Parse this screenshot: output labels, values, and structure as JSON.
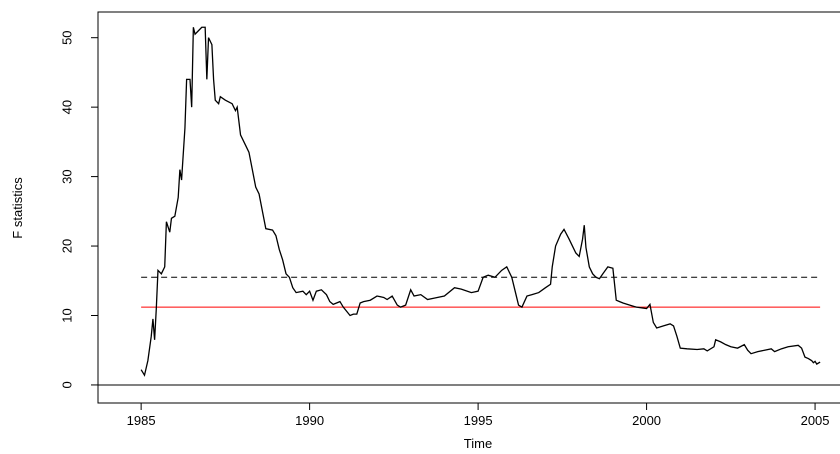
{
  "chart_data": {
    "type": "line",
    "x_label": "Time",
    "y_label": "F statistics",
    "xlim": [
      1983.72,
      2005.74
    ],
    "ylim": [
      -2.6,
      53.7
    ],
    "xticks": [
      1985,
      1990,
      1995,
      2000,
      2005
    ],
    "yticks": [
      0,
      10,
      20,
      30,
      40,
      50
    ],
    "series": [
      {
        "color": "#000000",
        "x": [
          1985.0,
          1985.1,
          1985.2,
          1985.3,
          1985.35,
          1985.4,
          1985.45,
          1985.5,
          1985.6,
          1985.7,
          1985.75,
          1985.85,
          1985.9,
          1986.0,
          1986.1,
          1986.15,
          1986.2,
          1986.3,
          1986.35,
          1986.45,
          1986.5,
          1986.55,
          1986.6,
          1986.7,
          1986.8,
          1986.9,
          1986.95,
          1987.0,
          1987.1,
          1987.15,
          1987.2,
          1987.3,
          1987.35,
          1987.5,
          1987.7,
          1987.8,
          1987.85,
          1987.95,
          1988.1,
          1988.2,
          1988.3,
          1988.4,
          1988.5,
          1988.6,
          1988.7,
          1988.9,
          1989.0,
          1989.1,
          1989.2,
          1989.3,
          1989.4,
          1989.5,
          1989.6,
          1989.8,
          1989.9,
          1990.0,
          1990.1,
          1990.2,
          1990.35,
          1990.5,
          1990.6,
          1990.7,
          1990.9,
          1991.0,
          1991.2,
          1991.3,
          1991.4,
          1991.5,
          1991.6,
          1991.8,
          1992.0,
          1992.2,
          1992.3,
          1992.45,
          1992.6,
          1992.7,
          1992.85,
          1993.0,
          1993.1,
          1993.3,
          1993.5,
          1993.7,
          1994.0,
          1994.3,
          1994.5,
          1994.8,
          1995.0,
          1995.15,
          1995.3,
          1995.5,
          1995.7,
          1995.85,
          1996.0,
          1996.1,
          1996.2,
          1996.3,
          1996.45,
          1996.6,
          1996.8,
          1997.0,
          1997.15,
          1997.2,
          1997.3,
          1997.45,
          1997.55,
          1997.7,
          1997.8,
          1997.9,
          1998.0,
          1998.1,
          1998.15,
          1998.2,
          1998.3,
          1998.4,
          1998.5,
          1998.6,
          1998.7,
          1998.85,
          1999.0,
          1999.05,
          1999.1,
          1999.2,
          1999.3,
          1999.5,
          1999.7,
          2000.0,
          2000.1,
          2000.2,
          2000.3,
          2000.5,
          2000.7,
          2000.8,
          2000.9,
          2001.0,
          2001.2,
          2001.5,
          2001.7,
          2001.8,
          2002.0,
          2002.05,
          2002.2,
          2002.35,
          2002.5,
          2002.7,
          2002.9,
          2003.0,
          2003.1,
          2003.3,
          2003.5,
          2003.7,
          2003.8,
          2004.0,
          2004.2,
          2004.5,
          2004.6,
          2004.7,
          2004.8,
          2004.9,
          2004.95,
          2005.0,
          2005.05,
          2005.15
        ],
        "values": [
          2.2,
          1.4,
          3.5,
          7,
          9.5,
          6.5,
          11,
          16.5,
          16,
          17,
          23.5,
          22,
          24,
          24.3,
          27,
          31,
          29.5,
          37,
          44,
          44,
          40,
          51.5,
          50.5,
          51,
          51.5,
          51.5,
          44,
          50,
          49,
          44,
          41,
          40.5,
          41.5,
          41,
          40.5,
          39.5,
          40,
          36,
          34.5,
          33.5,
          31,
          28.5,
          27.5,
          25,
          22.5,
          22.3,
          21.5,
          19.5,
          18,
          16,
          15.5,
          14,
          13.3,
          13.5,
          13,
          13.5,
          12.2,
          13.5,
          13.7,
          13,
          12,
          11.6,
          12,
          11.2,
          10,
          10.2,
          10.2,
          11.8,
          12,
          12.2,
          12.8,
          12.6,
          12.3,
          12.8,
          11.5,
          11.2,
          11.5,
          13.7,
          12.8,
          13,
          12.3,
          12.5,
          12.8,
          14,
          13.8,
          13.3,
          13.5,
          15.5,
          15.8,
          15.5,
          16.5,
          17,
          15.5,
          13.5,
          11.5,
          11.2,
          12.8,
          13,
          13.3,
          14,
          14.5,
          17,
          20,
          21.7,
          22.4,
          21,
          20,
          19,
          18.5,
          21,
          23,
          19.8,
          17,
          16,
          15.5,
          15.3,
          16,
          17,
          16.8,
          14.5,
          12.2,
          12,
          11.8,
          11.5,
          11.2,
          11,
          11.6,
          9,
          8.2,
          8.5,
          8.8,
          8.5,
          7,
          5.3,
          5.2,
          5.1,
          5.2,
          4.9,
          5.5,
          6.5,
          6.2,
          5.8,
          5.5,
          5.3,
          5.8,
          5,
          4.5,
          4.8,
          5,
          5.2,
          4.8,
          5.2,
          5.5,
          5.7,
          5.3,
          4.0,
          3.8,
          3.5,
          3.2,
          3.4,
          3,
          3.3
        ]
      }
    ],
    "hlines": [
      {
        "value": 0,
        "color": "#000000",
        "style": "solid",
        "span": "full"
      },
      {
        "value": 15.5,
        "color": "#000000",
        "style": "dashed",
        "span": "data"
      },
      {
        "value": 11.2,
        "color": "#ff0000",
        "style": "solid",
        "span": "data"
      }
    ]
  }
}
